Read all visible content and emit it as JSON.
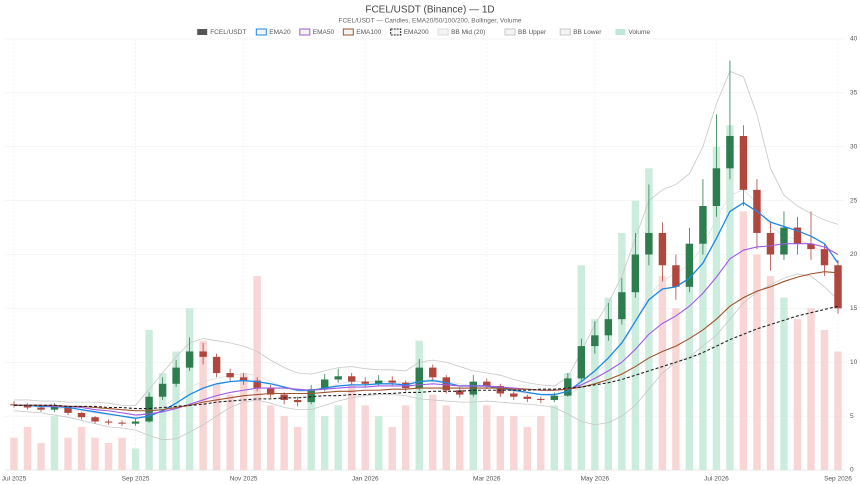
{
  "chart_data": {
    "type": "candlestick",
    "title": "FCEL/USDT (Binance) — 1D",
    "subtitle": "FCEL/USDT — Candles, EMA20/50/100/200, Bollinger, Volume",
    "categories": [
      "Jul 2025",
      null,
      null,
      null,
      null,
      null,
      null,
      null,
      null,
      "Sep 2025",
      null,
      null,
      null,
      null,
      null,
      null,
      null,
      "Nov 2025",
      null,
      null,
      null,
      null,
      null,
      null,
      null,
      null,
      "Jan 2026",
      null,
      null,
      null,
      null,
      null,
      null,
      null,
      null,
      "Mar 2026",
      null,
      null,
      null,
      null,
      null,
      null,
      null,
      "May 2026",
      null,
      null,
      null,
      null,
      null,
      null,
      null,
      null,
      "Jul 2026",
      null,
      null,
      null,
      null,
      null,
      null,
      null,
      null,
      "Sep 2026"
    ],
    "candles": {
      "name": "FCEL/USDT",
      "color": "#555555",
      "up_color": "#2e7d4f",
      "down_color": "#b0473f",
      "open": [
        6.1,
        6.0,
        5.8,
        5.6,
        5.9,
        5.3,
        4.9,
        4.5,
        4.4,
        4.3,
        4.5,
        6.8,
        8.0,
        9.5,
        11.0,
        10.5,
        9.0,
        8.6,
        8.3,
        7.6,
        7.0,
        6.5,
        6.3,
        7.5,
        8.4,
        8.7,
        8.2,
        8.0,
        8.3,
        8.1,
        7.6,
        9.5,
        8.6,
        7.4,
        7.0,
        8.2,
        7.8,
        7.1,
        6.8,
        6.6,
        6.5,
        6.9,
        8.5,
        11.5,
        12.5,
        14.0,
        16.5,
        20.0,
        22.0,
        19.0,
        17.0,
        21.0,
        24.5,
        28.0,
        31.0,
        26.0,
        22.0,
        20.0,
        22.5,
        21.0,
        20.5,
        19.0
      ],
      "high": [
        6.4,
        6.2,
        6.0,
        6.2,
        6.0,
        5.4,
        5.0,
        4.7,
        4.6,
        4.8,
        7.2,
        8.6,
        10.2,
        12.3,
        11.8,
        10.8,
        9.4,
        9.0,
        8.6,
        7.9,
        7.2,
        6.8,
        7.9,
        8.9,
        9.4,
        9.0,
        8.6,
        8.8,
        8.7,
        8.3,
        10.3,
        9.8,
        8.8,
        7.7,
        8.8,
        8.5,
        8.0,
        7.3,
        7.0,
        6.8,
        7.2,
        9.0,
        12.2,
        13.8,
        15.5,
        17.8,
        22.0,
        26.5,
        23.0,
        20.0,
        22.5,
        27.0,
        33.0,
        38.0,
        32.0,
        27.0,
        23.0,
        24.0,
        23.5,
        24.0,
        21.0,
        19.5
      ],
      "low": [
        5.8,
        5.6,
        5.4,
        5.4,
        5.1,
        4.7,
        4.3,
        4.2,
        4.1,
        4.1,
        4.4,
        6.5,
        7.7,
        9.2,
        9.8,
        8.6,
        8.2,
        7.9,
        7.3,
        6.7,
        6.1,
        5.9,
        6.1,
        7.3,
        8.1,
        7.9,
        7.7,
        7.8,
        7.8,
        7.3,
        7.4,
        8.2,
        7.1,
        6.7,
        6.8,
        7.5,
        6.8,
        6.5,
        6.3,
        6.2,
        6.3,
        6.8,
        8.3,
        10.8,
        12.0,
        13.5,
        16.0,
        19.0,
        17.5,
        15.8,
        16.5,
        20.0,
        23.5,
        27.0,
        24.5,
        20.5,
        18.5,
        19.5,
        20.0,
        19.5,
        18.0,
        14.5
      ],
      "close": [
        6.0,
        5.8,
        5.6,
        5.9,
        5.3,
        4.9,
        4.5,
        4.4,
        4.3,
        4.5,
        6.8,
        8.0,
        9.5,
        11.0,
        10.5,
        9.0,
        8.6,
        8.3,
        7.6,
        7.0,
        6.5,
        6.3,
        7.5,
        8.4,
        8.7,
        8.2,
        8.0,
        8.3,
        8.1,
        7.6,
        9.5,
        8.6,
        7.4,
        7.0,
        8.2,
        7.8,
        7.1,
        6.8,
        6.6,
        6.5,
        6.9,
        8.5,
        11.5,
        12.5,
        14.0,
        16.5,
        20.0,
        22.0,
        19.0,
        17.0,
        21.0,
        24.5,
        28.0,
        31.0,
        26.0,
        22.0,
        20.0,
        22.5,
        21.0,
        20.5,
        19.0,
        15.0
      ]
    },
    "volume": {
      "name": "Volume",
      "color": "#bfe8d6",
      "up_color": "#bfe8d6",
      "down_color": "#f6cccc",
      "values": [
        3,
        4,
        2.5,
        5,
        3,
        4,
        3,
        2.5,
        3,
        2,
        13,
        9,
        11,
        15,
        12,
        8,
        7,
        9,
        18,
        6,
        5,
        4,
        7,
        5,
        6,
        8,
        6,
        5,
        4,
        6,
        12,
        7,
        6,
        5,
        8,
        6,
        5,
        5,
        4,
        5,
        6,
        9,
        19,
        14,
        16,
        22,
        25,
        28,
        18,
        15,
        21,
        24,
        30,
        32,
        24,
        20,
        18,
        16,
        14,
        15,
        13,
        11
      ]
    },
    "lines": [
      {
        "name": "EMA20",
        "color": "#1e88e5",
        "width": 1.3,
        "values": [
          6.0,
          6.0,
          5.9,
          5.9,
          5.8,
          5.6,
          5.4,
          5.2,
          5.0,
          4.8,
          5.0,
          5.5,
          6.2,
          7.0,
          7.6,
          8.0,
          8.2,
          8.3,
          8.2,
          8.0,
          7.7,
          7.4,
          7.4,
          7.6,
          7.8,
          7.9,
          7.9,
          8.0,
          8.0,
          7.9,
          8.2,
          8.3,
          8.1,
          7.8,
          7.8,
          7.8,
          7.6,
          7.4,
          7.2,
          7.0,
          7.0,
          7.3,
          8.2,
          9.2,
          10.4,
          11.8,
          13.8,
          15.8,
          16.8,
          17.0,
          17.8,
          19.2,
          21.5,
          24.0,
          24.8,
          24.0,
          23.0,
          22.6,
          22.2,
          21.7,
          21.0,
          19.2
        ]
      },
      {
        "name": "EMA50",
        "color": "#a259e6",
        "width": 1.1,
        "values": [
          6.0,
          6.0,
          6.0,
          5.9,
          5.9,
          5.8,
          5.6,
          5.5,
          5.3,
          5.1,
          5.2,
          5.4,
          5.7,
          6.1,
          6.5,
          6.9,
          7.2,
          7.4,
          7.6,
          7.6,
          7.6,
          7.5,
          7.4,
          7.5,
          7.6,
          7.7,
          7.7,
          7.8,
          7.8,
          7.8,
          7.9,
          8.0,
          7.9,
          7.8,
          7.8,
          7.8,
          7.7,
          7.6,
          7.5,
          7.4,
          7.4,
          7.5,
          7.9,
          8.5,
          9.2,
          10.0,
          11.2,
          12.6,
          13.6,
          14.3,
          15.2,
          16.4,
          17.9,
          19.6,
          20.4,
          20.7,
          20.8,
          21.0,
          21.0,
          21.0,
          20.7,
          20.0
        ]
      },
      {
        "name": "EMA100",
        "color": "#a0522d",
        "width": 1.1,
        "values": [
          6.0,
          6.0,
          6.0,
          6.0,
          5.9,
          5.9,
          5.8,
          5.7,
          5.6,
          5.5,
          5.5,
          5.6,
          5.8,
          6.0,
          6.3,
          6.5,
          6.7,
          6.9,
          7.0,
          7.1,
          7.1,
          7.1,
          7.1,
          7.2,
          7.3,
          7.3,
          7.4,
          7.4,
          7.5,
          7.5,
          7.6,
          7.6,
          7.6,
          7.6,
          7.6,
          7.6,
          7.6,
          7.5,
          7.5,
          7.4,
          7.4,
          7.5,
          7.7,
          8.0,
          8.4,
          8.9,
          9.6,
          10.4,
          11.0,
          11.5,
          12.2,
          13.0,
          14.0,
          15.2,
          16.0,
          16.6,
          17.0,
          17.5,
          17.9,
          18.2,
          18.4,
          18.3
        ]
      },
      {
        "name": "EMA200",
        "color": "#222222",
        "width": 1.1,
        "dash": true,
        "values": [
          6.0,
          6.0,
          6.0,
          6.0,
          5.9,
          5.9,
          5.9,
          5.8,
          5.8,
          5.7,
          5.7,
          5.8,
          5.9,
          6.0,
          6.1,
          6.3,
          6.4,
          6.5,
          6.6,
          6.6,
          6.7,
          6.7,
          6.8,
          6.9,
          6.9,
          7.0,
          7.0,
          7.1,
          7.1,
          7.2,
          7.2,
          7.3,
          7.3,
          7.3,
          7.4,
          7.4,
          7.4,
          7.4,
          7.4,
          7.5,
          7.5,
          7.6,
          7.7,
          7.9,
          8.1,
          8.4,
          8.8,
          9.2,
          9.6,
          10.0,
          10.4,
          10.9,
          11.5,
          12.1,
          12.6,
          13.1,
          13.5,
          13.9,
          14.3,
          14.6,
          14.9,
          15.2
        ]
      },
      {
        "name": "BB Mid (20)",
        "color": "#dddddd",
        "width": 0.7,
        "values": [
          6.0,
          6.0,
          5.9,
          5.8,
          5.6,
          5.5,
          5.3,
          5.1,
          5.0,
          4.9,
          5.4,
          5.9,
          6.7,
          7.7,
          8.2,
          8.5,
          8.8,
          8.9,
          8.8,
          8.2,
          7.7,
          7.3,
          7.3,
          7.6,
          8.0,
          8.2,
          8.2,
          8.2,
          8.2,
          8.1,
          8.3,
          8.4,
          8.2,
          8.0,
          7.8,
          7.7,
          7.6,
          7.3,
          7.1,
          7.0,
          6.8,
          6.9,
          7.8,
          8.9,
          10.0,
          11.5,
          13.8,
          16.3,
          17.5,
          18.3,
          19.0,
          20.8,
          23.3,
          25.5,
          26.0,
          24.8,
          22.6,
          21.7,
          21.4,
          20.9,
          20.1,
          19.3
        ]
      },
      {
        "name": "BB Upper",
        "color": "#c8c8c8",
        "width": 0.8,
        "values": [
          6.5,
          6.5,
          6.4,
          6.4,
          6.3,
          6.3,
          6.3,
          6.2,
          6.0,
          6.0,
          7.5,
          9.0,
          10.5,
          11.8,
          12.2,
          12.0,
          11.8,
          11.5,
          11.0,
          10.2,
          9.5,
          9.0,
          8.9,
          9.2,
          9.5,
          9.6,
          9.4,
          9.3,
          9.3,
          9.2,
          10.0,
          10.2,
          10.0,
          9.6,
          9.2,
          9.0,
          8.8,
          8.4,
          8.1,
          7.9,
          7.8,
          8.6,
          11.0,
          13.5,
          15.5,
          18.0,
          21.5,
          25.0,
          26.0,
          26.5,
          27.5,
          30.0,
          34.0,
          37.0,
          36.5,
          33.0,
          28.0,
          25.5,
          24.5,
          23.8,
          23.2,
          22.8
        ]
      },
      {
        "name": "BB Lower",
        "color": "#c8c8c8",
        "width": 0.8,
        "values": [
          5.5,
          5.4,
          5.3,
          5.1,
          4.9,
          4.6,
          4.3,
          4.0,
          3.9,
          3.7,
          3.2,
          2.8,
          2.9,
          3.5,
          4.2,
          5.0,
          5.8,
          6.3,
          6.5,
          6.2,
          5.8,
          5.6,
          5.6,
          6.0,
          6.4,
          6.7,
          6.9,
          7.0,
          7.0,
          6.9,
          6.6,
          6.5,
          6.4,
          6.3,
          6.3,
          6.4,
          6.3,
          6.2,
          6.1,
          6.0,
          5.8,
          5.2,
          4.5,
          4.2,
          4.4,
          5.0,
          6.0,
          7.5,
          9.0,
          10.0,
          10.5,
          11.5,
          12.5,
          14.0,
          15.5,
          16.5,
          17.2,
          17.8,
          18.2,
          18.0,
          17.0,
          15.8
        ]
      }
    ],
    "ylim": [
      0,
      40
    ],
    "yticks": [
      0,
      5,
      10,
      15,
      20,
      25,
      30,
      35,
      40
    ],
    "grid": true
  }
}
